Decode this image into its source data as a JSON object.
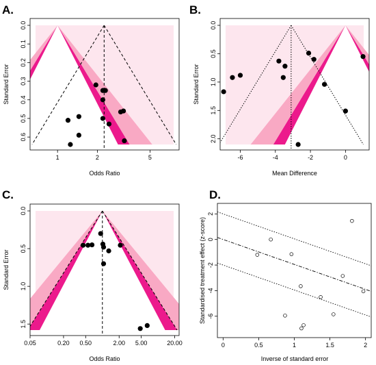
{
  "colors": {
    "region_light": "#fde6ee",
    "region_mid": "#f9a9c4",
    "region_dark": "#ec1a8c",
    "point": "#000000"
  },
  "chart_data": [
    {
      "panel": "A.",
      "type": "scatter",
      "subtype": "contour-enhanced funnel plot",
      "title": "",
      "xlabel": "Odds Ratio",
      "ylabel": "Standard Error",
      "x_scale": "log",
      "xticks": [
        1,
        2,
        5
      ],
      "xlim": [
        0.62,
        8.3
      ],
      "yticks": [
        0.0,
        0.1,
        0.2,
        0.3,
        0.4,
        0.5,
        0.6
      ],
      "ylim": [
        0.0,
        0.64
      ],
      "y_reversed": true,
      "apex": 1,
      "pooled_estimate": 2.25,
      "contour_z": [
        1.645,
        1.96,
        2.576
      ],
      "dashed_funnel": {
        "estimate": 2.25,
        "line": "dashed"
      },
      "points": [
        {
          "x": 1.25,
          "y": 0.64
        },
        {
          "x": 1.2,
          "y": 0.51
        },
        {
          "x": 1.45,
          "y": 0.49
        },
        {
          "x": 1.45,
          "y": 0.59
        },
        {
          "x": 1.95,
          "y": 0.32
        },
        {
          "x": 2.2,
          "y": 0.35
        },
        {
          "x": 2.3,
          "y": 0.35
        },
        {
          "x": 2.2,
          "y": 0.4
        },
        {
          "x": 2.2,
          "y": 0.5
        },
        {
          "x": 2.45,
          "y": 0.53
        },
        {
          "x": 3.0,
          "y": 0.465
        },
        {
          "x": 3.15,
          "y": 0.46
        },
        {
          "x": 3.2,
          "y": 0.62
        }
      ]
    },
    {
      "panel": "B.",
      "type": "scatter",
      "subtype": "contour-enhanced funnel plot",
      "title": "",
      "xlabel": "Mean Difference",
      "ylabel": "Standard Error",
      "x_scale": "linear",
      "xticks": [
        -6,
        -4,
        -2,
        0
      ],
      "xlim": [
        -7.15,
        1.35
      ],
      "yticks": [
        0.0,
        0.5,
        1.0,
        1.5,
        2.0
      ],
      "ylim": [
        0.0,
        2.1
      ],
      "y_reversed": true,
      "apex": 0,
      "pooled_estimate": -3.1,
      "contour_z": [
        1.645,
        1.96,
        2.576
      ],
      "dashed_funnel": {
        "estimate": -3.1,
        "line": "dotted"
      },
      "points": [
        {
          "x": -6.95,
          "y": 1.17
        },
        {
          "x": -6.45,
          "y": 0.92
        },
        {
          "x": -6.0,
          "y": 0.88
        },
        {
          "x": -3.8,
          "y": 0.63
        },
        {
          "x": -3.45,
          "y": 0.72
        },
        {
          "x": -3.55,
          "y": 0.92
        },
        {
          "x": -2.1,
          "y": 0.49
        },
        {
          "x": -1.8,
          "y": 0.6
        },
        {
          "x": -1.2,
          "y": 1.04
        },
        {
          "x": 0.0,
          "y": 1.51
        },
        {
          "x": 1.0,
          "y": 0.55
        },
        {
          "x": -2.7,
          "y": 2.1
        }
      ]
    },
    {
      "panel": "C.",
      "type": "scatter",
      "subtype": "contour-enhanced funnel plot",
      "title": "",
      "xlabel": "Odds Ratio",
      "ylabel": "Standard Error",
      "x_scale": "log",
      "xticks": [
        0.05,
        0.2,
        0.5,
        2.0,
        5.0,
        20.0
      ],
      "xtick_labels": [
        "0.05",
        "0.20",
        "0.50",
        "2.00",
        "5.00",
        "20.00"
      ],
      "xlim": [
        0.05,
        24
      ],
      "yticks": [
        0.0,
        0.5,
        1.0,
        1.5
      ],
      "ylim": [
        0.0,
        1.58
      ],
      "y_reversed": true,
      "apex": 1,
      "pooled_estimate": 1.0,
      "contour_z": [
        1.645,
        1.96,
        2.576
      ],
      "dashed_funnel": {
        "estimate": 1.0,
        "line": "dashed"
      },
      "points": [
        {
          "x": 0.45,
          "y": 0.455
        },
        {
          "x": 0.55,
          "y": 0.455
        },
        {
          "x": 0.65,
          "y": 0.45
        },
        {
          "x": 0.93,
          "y": 0.3
        },
        {
          "x": 1.02,
          "y": 0.44
        },
        {
          "x": 1.05,
          "y": 0.48
        },
        {
          "x": 1.05,
          "y": 0.7
        },
        {
          "x": 1.3,
          "y": 0.53
        },
        {
          "x": 2.1,
          "y": 0.455
        },
        {
          "x": 4.8,
          "y": 1.56
        },
        {
          "x": 6.4,
          "y": 1.52
        }
      ]
    },
    {
      "panel": "D.",
      "type": "scatter",
      "subtype": "Galbraith (radial) plot",
      "title": "",
      "xlabel": "Inverse of standard error",
      "ylabel": "Standardised treatment effect (z-score)",
      "xticks": [
        0.0,
        0.5,
        1.0,
        1.5,
        2.0
      ],
      "xlim": [
        -0.08,
        2.08
      ],
      "yticks": [
        2,
        0,
        -2,
        -4,
        -6
      ],
      "ylim": [
        -7.35,
        2.5
      ],
      "regression_lines": [
        {
          "intercept": 2.0,
          "slope": -1.95,
          "style": "dotted"
        },
        {
          "intercept": 0.0,
          "slope": -1.95,
          "style": "dash-dot"
        },
        {
          "intercept": -2.0,
          "slope": -1.95,
          "style": "dotted"
        }
      ],
      "points": [
        {
          "x": 0.48,
          "y": -1.2
        },
        {
          "x": 0.67,
          "y": 0.0
        },
        {
          "x": 0.96,
          "y": -1.15
        },
        {
          "x": 1.09,
          "y": -3.65
        },
        {
          "x": 0.87,
          "y": -5.95
        },
        {
          "x": 1.1,
          "y": -6.95
        },
        {
          "x": 1.13,
          "y": -6.7
        },
        {
          "x": 1.37,
          "y": -4.5
        },
        {
          "x": 1.55,
          "y": -5.85
        },
        {
          "x": 1.68,
          "y": -2.85
        },
        {
          "x": 1.81,
          "y": 1.45
        },
        {
          "x": 1.97,
          "y": -4.05
        }
      ]
    }
  ]
}
